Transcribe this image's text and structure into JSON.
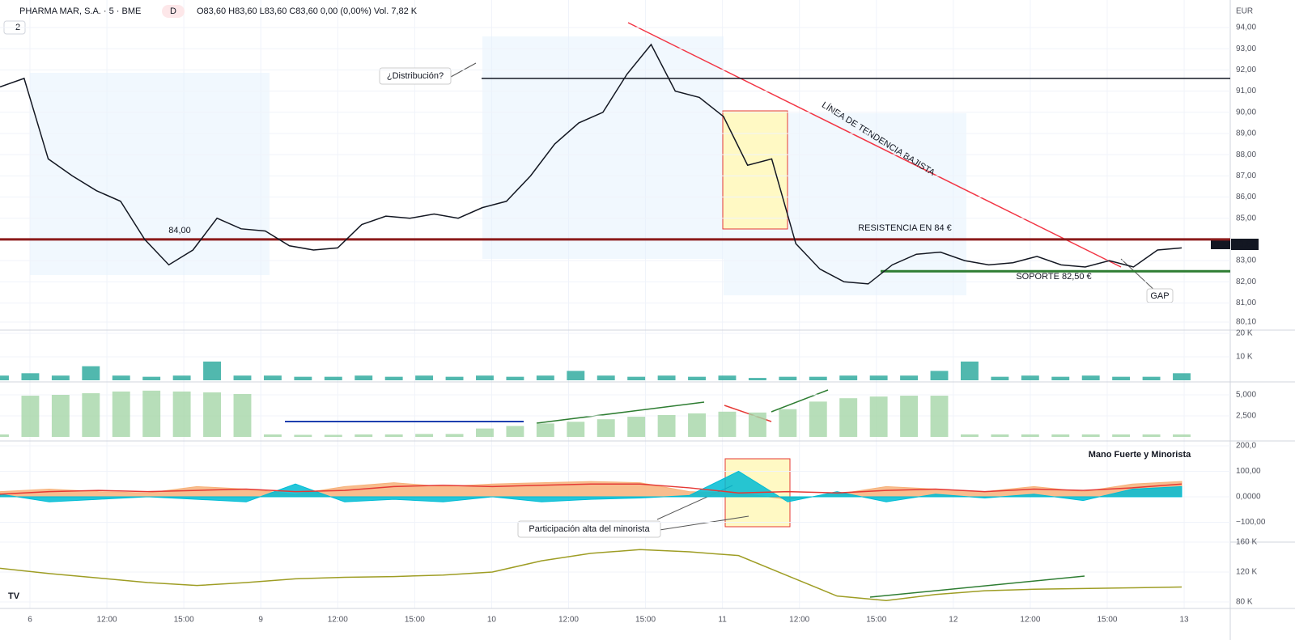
{
  "header": {
    "symbol": "PHARMA MAR, S.A. · 5 · BME",
    "badge": "D",
    "ohlc": "O83,60 H83,60 L83,60 C83,60 0,00 (0,00%) Vol. 7,82 K",
    "interval_count": "2",
    "currency": "EUR"
  },
  "annotations": {
    "resistance": "RESISTENCIA EN 84 €",
    "support": "SOPORTE 82,50 €",
    "trend": "LÍNEA DE TENDENCIA BAJISTA",
    "gap": "GAP",
    "distribution": "¿Distribución?",
    "retail": "Participación alta del minorista",
    "indicator": "Mano Fuerte y Minorista",
    "level_label": "84,00",
    "ticker": "PHM",
    "last": "83,60"
  },
  "time_axis": [
    "6",
    "12:00",
    "15:00",
    "9",
    "12:00",
    "15:00",
    "10",
    "12:00",
    "15:00",
    "11",
    "12:00",
    "15:00",
    "12",
    "12:00",
    "15:00",
    "13"
  ],
  "chart_data": [
    {
      "type": "line",
      "ylim": [
        79.72,
        95.3
      ],
      "yticks": [
        {
          "value": 94,
          "label": "94,00"
        },
        {
          "value": 93,
          "label": "93,00"
        },
        {
          "value": 92,
          "label": "92,00"
        },
        {
          "value": 91,
          "label": "91,00"
        },
        {
          "value": 90,
          "label": "90,00"
        },
        {
          "value": 89,
          "label": "89,00"
        },
        {
          "value": 88,
          "label": "88,00"
        },
        {
          "value": 87,
          "label": "87,00"
        },
        {
          "value": 86,
          "label": "86,00"
        },
        {
          "value": 85,
          "label": "85,00"
        },
        {
          "value": 83,
          "label": "83,00"
        },
        {
          "value": 82,
          "label": "82,00"
        },
        {
          "value": 81,
          "label": "81,00"
        },
        {
          "value": 80.1,
          "label": "80,10"
        }
      ],
      "levels": [
        {
          "value": 84,
          "color": "#8b1a1a"
        },
        {
          "value": 82.5,
          "color": "#2e7d32"
        },
        {
          "value": 91.6,
          "color": "#131722"
        }
      ],
      "series": [
        {
          "color": "#131722",
          "values": [
            91.2,
            91.6,
            87.8,
            87.0,
            86.3,
            85.8,
            84.0,
            82.8,
            83.5,
            85.0,
            84.5,
            84.4,
            83.7,
            83.5,
            83.6,
            84.7,
            85.1,
            85.0,
            85.2,
            85.0,
            85.5,
            85.8,
            87.0,
            88.5,
            89.5,
            90.0,
            91.8,
            93.2,
            91.0,
            90.7,
            89.8,
            87.5,
            87.8,
            83.8,
            82.6,
            82.0,
            81.9,
            82.8,
            83.3,
            83.4,
            83.0,
            82.8,
            82.9,
            83.2,
            82.8,
            82.7,
            83.0,
            82.7,
            83.5,
            83.6
          ]
        }
      ]
    },
    {
      "type": "bar",
      "ylim": [
        0,
        21.4
      ],
      "yticks": [
        {
          "value": 20,
          "label": "20 K"
        },
        {
          "value": 10,
          "label": "10 K"
        }
      ],
      "series": [
        {
          "color": "#26a69a",
          "values": [
            2,
            3,
            2,
            6,
            2,
            1.5,
            2,
            8,
            2,
            2,
            1.5,
            1.5,
            2,
            1.5,
            2,
            1.5,
            2,
            1.5,
            2,
            4,
            2,
            1.5,
            2,
            1.5,
            2,
            1,
            1.5,
            1.5,
            2,
            2,
            2,
            4,
            8,
            1.5,
            2,
            1.5,
            2,
            1.5,
            1.5,
            3
          ]
        }
      ]
    },
    {
      "type": "bar",
      "ylim": [
        -480,
        6540
      ],
      "yticks": [
        {
          "value": 5000,
          "label": "5,000"
        },
        {
          "value": 2500,
          "label": "2,500"
        }
      ],
      "series": [
        {
          "color": "#a5d6a7",
          "values": [
            300,
            4900,
            5000,
            5200,
            5400,
            5500,
            5400,
            5300,
            5100,
            300,
            250,
            250,
            300,
            300,
            350,
            350,
            1000,
            1300,
            1600,
            1800,
            2100,
            2400,
            2600,
            2800,
            3000,
            2900,
            3300,
            4200,
            4600,
            4800,
            4900,
            4900,
            300,
            300,
            300,
            300,
            300,
            300,
            300,
            300
          ]
        }
      ]
    },
    {
      "type": "area",
      "ylim": [
        -178,
        219
      ],
      "yticks": [
        {
          "value": 200,
          "label": "200,0"
        },
        {
          "value": 100,
          "label": "100,00"
        },
        {
          "value": 0,
          "label": "0,0000"
        },
        {
          "value": -100,
          "label": "−100,00"
        }
      ],
      "series": [
        {
          "color": "#f7b27a",
          "filled": true,
          "values": [
            20,
            30,
            20,
            15,
            40,
            30,
            10,
            40,
            55,
            40,
            50,
            55,
            60,
            55,
            20,
            15,
            -10,
            10,
            40,
            30,
            20,
            40,
            20,
            50,
            60
          ]
        },
        {
          "color": "#00bcd4",
          "filled": true,
          "values": [
            10,
            -20,
            -10,
            0,
            -10,
            -20,
            50,
            -20,
            -10,
            -20,
            0,
            -20,
            -10,
            -5,
            5,
            100,
            -20,
            20,
            -20,
            10,
            -5,
            10,
            -15,
            30,
            40
          ]
        },
        {
          "color": "#e53935",
          "filled": false,
          "values": [
            10,
            20,
            25,
            20,
            25,
            30,
            20,
            25,
            40,
            45,
            40,
            45,
            50,
            50,
            35,
            15,
            20,
            15,
            25,
            30,
            20,
            30,
            25,
            35,
            50
          ]
        }
      ]
    },
    {
      "type": "line",
      "ylim": [
        71.4,
        160
      ],
      "yticks": [
        {
          "value": 160,
          "label": "160 K"
        },
        {
          "value": 120,
          "label": "120 K"
        },
        {
          "value": 80,
          "label": "80 K"
        }
      ],
      "series": [
        {
          "color": "#9e9d24",
          "values": [
            125,
            118,
            112,
            106,
            102,
            106,
            111,
            113,
            114,
            116,
            120,
            135,
            145,
            150,
            147,
            142,
            115,
            88,
            82,
            90,
            95,
            97,
            98,
            99,
            100
          ]
        }
      ]
    }
  ]
}
